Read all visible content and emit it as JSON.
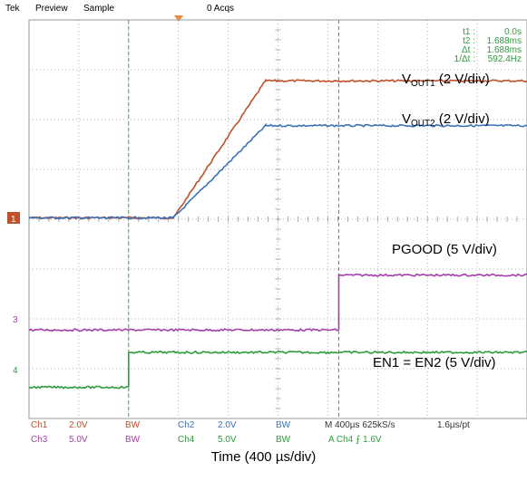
{
  "header": {
    "brand": "Tek",
    "mode": "Preview",
    "acq_mode": "Sample",
    "acqs": "0 Acqs"
  },
  "cursor_readout": [
    {
      "label": "t1 :",
      "value": "0.0s"
    },
    {
      "label": "t2 :",
      "value": "1.688ms"
    },
    {
      "label": "Δt :",
      "value": "1.688ms"
    },
    {
      "label": "1/Δt :",
      "value": "592.4Hz"
    }
  ],
  "trace_labels": {
    "vout1_main": "V",
    "vout1_sub": "OUT1",
    "vout1_scale": " (2 V/div)",
    "vout2_main": "V",
    "vout2_sub": "OUT2",
    "vout2_scale": " (2 V/div)",
    "pgood": "PGOOD (5 V/div)",
    "en": "EN1 = EN2 (5 V/div)"
  },
  "channel_markers": [
    "1",
    "3",
    "4"
  ],
  "channel_settings": {
    "ch1": {
      "name": "Ch1",
      "scale": "2.0V",
      "bw": "BW"
    },
    "ch2": {
      "name": "Ch2",
      "scale": "2.0V",
      "bw": "BW"
    },
    "ch3": {
      "name": "Ch3",
      "scale": "5.0V",
      "bw": "BW"
    },
    "ch4": {
      "name": "Ch4",
      "scale": "5.0V",
      "bw": "BW"
    },
    "timebase": "M 400µs 625kS/s",
    "resolution": "1.6µs/pt",
    "trigger": "A  Ch4  ⨍  1.6V"
  },
  "x_caption": "Time (400 µs/div)",
  "colors": {
    "ch1": "#c0502a",
    "ch2": "#3a73b8",
    "ch3": "#a23fa8",
    "ch4": "#2e9a3e",
    "cursor": "#3aa84a",
    "trigger_marker": "#f08a3c",
    "grid": "#9a9a9a"
  },
  "chart_data": {
    "type": "line",
    "x_units": "µs",
    "xlim": [
      -800,
      3200
    ],
    "grid": true,
    "cursors_us": [
      0,
      1688
    ],
    "series": [
      {
        "name": "VOUT1 (2 V/div)",
        "channel": "ch1",
        "level_div": 0,
        "x": [
          -800,
          360,
          1100,
          3200
        ],
        "y_div": [
          0,
          0,
          2.75,
          2.75
        ]
      },
      {
        "name": "VOUT2 (2 V/div)",
        "channel": "ch2",
        "level_div": 0,
        "x": [
          -800,
          360,
          1100,
          3200
        ],
        "y_div": [
          0,
          0,
          1.85,
          1.85
        ]
      },
      {
        "name": "PGOOD (5 V/div)",
        "channel": "ch3",
        "level_div": -2.25,
        "x": [
          -800,
          1688,
          1688,
          3200
        ],
        "y_div": [
          0,
          0,
          1.1,
          1.1
        ]
      },
      {
        "name": "EN1 = EN2 (5 V/div)",
        "channel": "ch4",
        "level_div": -3.4,
        "x": [
          -800,
          0,
          0,
          3200
        ],
        "y_div": [
          0,
          0,
          0.7,
          0.7
        ]
      }
    ]
  }
}
